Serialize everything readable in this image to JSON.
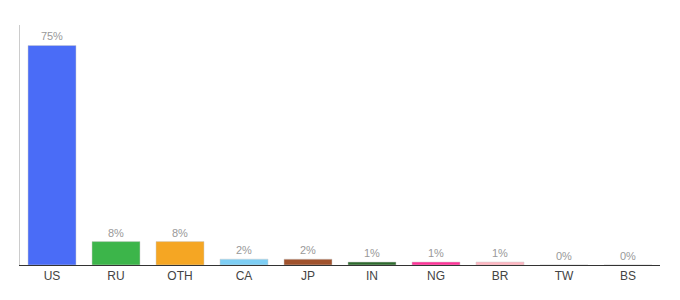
{
  "chart_data": {
    "type": "bar",
    "categories": [
      "US",
      "RU",
      "OTH",
      "CA",
      "JP",
      "IN",
      "NG",
      "BR",
      "TW",
      "BS"
    ],
    "values": [
      75,
      8,
      8,
      2,
      2,
      1,
      1,
      1,
      0,
      0
    ],
    "value_labels": [
      "75%",
      "8%",
      "8%",
      "2%",
      "2%",
      "1%",
      "1%",
      "1%",
      "0%",
      "0%"
    ],
    "colors": [
      "#4a6cf7",
      "#3cb54a",
      "#f5a623",
      "#7ecef4",
      "#a0522d",
      "#2e6b2e",
      "#ff3399",
      "#ffb6c1",
      "#ffffff",
      "#ffffff"
    ],
    "ylim": [
      0,
      82
    ],
    "data_labels": true,
    "tick_labels": "x",
    "grid": false
  }
}
